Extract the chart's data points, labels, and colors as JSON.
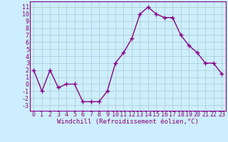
{
  "x": [
    0,
    1,
    2,
    3,
    4,
    5,
    6,
    7,
    8,
    9,
    10,
    11,
    12,
    13,
    14,
    15,
    16,
    17,
    18,
    19,
    20,
    21,
    22,
    23
  ],
  "y": [
    2,
    -1,
    2,
    -0.5,
    0,
    0,
    -2.5,
    -2.5,
    -2.5,
    -1,
    3,
    4.5,
    6.5,
    10,
    11,
    10,
    9.5,
    9.5,
    7,
    5.5,
    4.5,
    3,
    3,
    1.5
  ],
  "line_color": "#880088",
  "marker": "+",
  "marker_size": 4,
  "marker_lw": 1.0,
  "line_width": 1.0,
  "bg_color": "#cceeff",
  "grid_color": "#aacccc",
  "xlabel": "Windchill (Refroidissement éolien,°C)",
  "xlabel_fontsize": 6.5,
  "ylabel_ticks": [
    -3,
    -2,
    -1,
    0,
    1,
    2,
    3,
    4,
    5,
    6,
    7,
    8,
    9,
    10,
    11
  ],
  "xlim": [
    -0.5,
    23.5
  ],
  "ylim": [
    -3.8,
    11.8
  ],
  "tick_fontsize": 6.0
}
